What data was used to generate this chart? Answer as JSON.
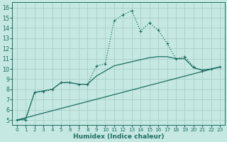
{
  "xlabel": "Humidex (Indice chaleur)",
  "xlim": [
    -0.5,
    23.5
  ],
  "ylim": [
    4.5,
    16.5
  ],
  "xticks": [
    0,
    1,
    2,
    3,
    4,
    5,
    6,
    7,
    8,
    9,
    10,
    11,
    12,
    13,
    14,
    15,
    16,
    17,
    18,
    19,
    20,
    21,
    22,
    23
  ],
  "yticks": [
    5,
    6,
    7,
    8,
    9,
    10,
    11,
    12,
    13,
    14,
    15,
    16
  ],
  "bg_color": "#c5e8e2",
  "grid_color": "#a8cfc8",
  "line_color": "#1e6e62",
  "line1_x": [
    0,
    1,
    2,
    3,
    4,
    5,
    6,
    7,
    8,
    9,
    10,
    11,
    12,
    13,
    14,
    15,
    16,
    17,
    18,
    19,
    20,
    21,
    22,
    23
  ],
  "line1_y": [
    5.0,
    5.0,
    7.7,
    7.8,
    8.0,
    8.7,
    8.7,
    8.5,
    8.5,
    10.3,
    10.5,
    14.7,
    15.3,
    15.7,
    13.7,
    14.5,
    13.8,
    12.5,
    11.0,
    11.2,
    10.2,
    9.8,
    10.0,
    10.2
  ],
  "line2_x": [
    0,
    1,
    2,
    3,
    4,
    5,
    6,
    7,
    8,
    9,
    10,
    11,
    12,
    13,
    14,
    15,
    16,
    17,
    18,
    19,
    20,
    21,
    22,
    23
  ],
  "line2_y": [
    5.0,
    5.1,
    7.7,
    7.85,
    8.0,
    8.65,
    8.65,
    8.5,
    8.5,
    9.3,
    9.8,
    10.3,
    10.5,
    10.7,
    10.9,
    11.1,
    11.2,
    11.2,
    11.0,
    11.0,
    10.1,
    9.9,
    10.0,
    10.2
  ],
  "line3_x": [
    0,
    23
  ],
  "line3_y": [
    5.0,
    10.2
  ],
  "marker_size": 3.5,
  "line_width": 0.9
}
